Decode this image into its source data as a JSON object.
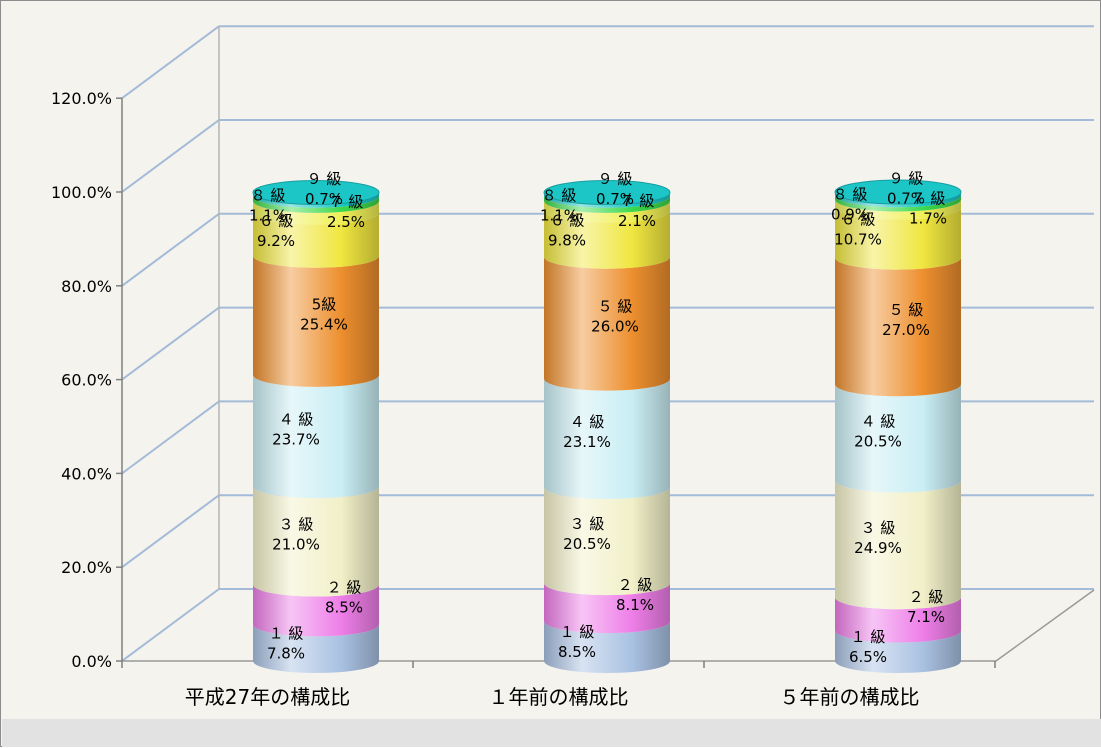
{
  "chart_data": {
    "type": "bar",
    "stacked": true,
    "style": "3d-cylinder",
    "title": "",
    "xlabel": "",
    "ylabel": "",
    "ylim": [
      0,
      120
    ],
    "y_ticks": [
      "0.0%",
      "20.0%",
      "40.0%",
      "60.0%",
      "80.0%",
      "100.0%",
      "120.0%"
    ],
    "grid": true,
    "legend": "none",
    "categories": [
      "平成27年の構成比",
      "１年前の構成比",
      "５年前の構成比"
    ],
    "series": [
      {
        "grade": "１級",
        "color": "#a9c1e2",
        "values": [
          7.8,
          8.5,
          6.5
        ],
        "labels": [
          "１ 級\n7.8%",
          "１ 級\n8.5%",
          "１ 級\n6.5%"
        ]
      },
      {
        "grade": "２級",
        "color": "#ee7ee8",
        "values": [
          8.5,
          8.1,
          7.1
        ],
        "labels": [
          "２ 級\n8.5%",
          "２ 級\n8.1%",
          "２ 級\n7.1%"
        ]
      },
      {
        "grade": "３級",
        "color": "#f1f0c8",
        "values": [
          21.0,
          20.5,
          24.9
        ],
        "labels": [
          "３ 級\n21.0%",
          "３ 級\n20.5%",
          "３ 級\n24.9%"
        ]
      },
      {
        "grade": "４級",
        "color": "#c9eef4",
        "values": [
          23.7,
          23.1,
          20.5
        ],
        "labels": [
          "４ 級\n23.7%",
          "４ 級\n23.1%",
          "４ 級\n20.5%"
        ]
      },
      {
        "grade": "５級",
        "color": "#ed8f2e",
        "values": [
          25.4,
          26.0,
          27.0
        ],
        "labels": [
          "5級\n25.4%",
          "５ 級\n26.0%",
          "５ 級\n27.0%"
        ]
      },
      {
        "grade": "６級",
        "color": "#f0e640",
        "values": [
          9.2,
          9.8,
          10.7
        ],
        "labels": [
          "６ 級\n9.2%",
          "６ 級\n9.8%",
          "６ 級\n10.7%"
        ]
      },
      {
        "grade": "７級",
        "color": "#f0f058",
        "values": [
          2.5,
          2.1,
          1.7
        ],
        "labels": [
          "７ 級\n2.5%",
          "７ 級\n2.1%",
          "７ 級\n1.7%"
        ]
      },
      {
        "grade": "８級",
        "color": "#3dd94c",
        "values": [
          1.1,
          1.1,
          0.9
        ],
        "labels": [
          "８ 級\n1.1%",
          "８ 級\n1.1%",
          "８ 級\n0.9%"
        ]
      },
      {
        "grade": "９級",
        "color": "#1cc6c6",
        "values": [
          0.7,
          0.7,
          0.7
        ],
        "labels": [
          "９ 級\n0.7%",
          "９ 級\n0.7%",
          "９ 級\n0.7%"
        ]
      }
    ]
  }
}
